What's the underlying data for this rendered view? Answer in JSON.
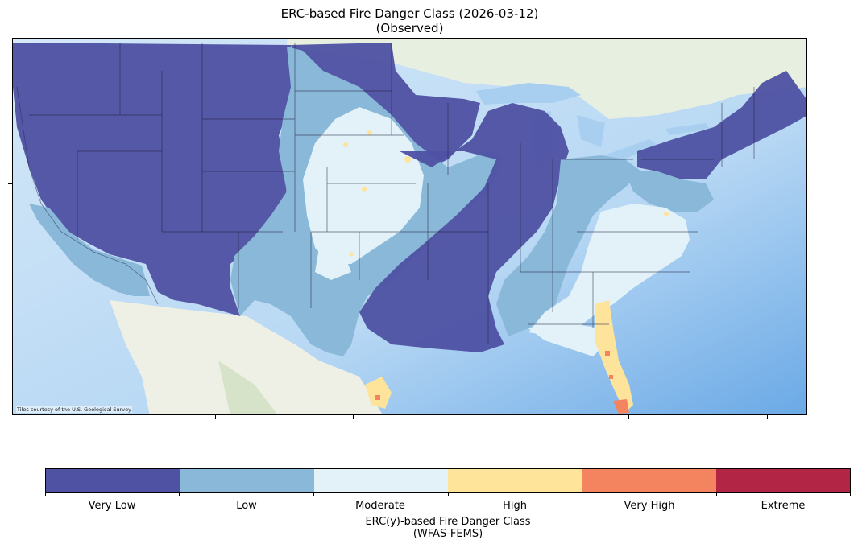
{
  "title": {
    "line1": "ERC-based Fire Danger Class (2026-03-12)",
    "line2": "(Observed)"
  },
  "map": {
    "attribution": "Tiles courtesy of the U.S. Geological Survey",
    "colors": {
      "ocean": "#b9d9f5",
      "land": "#eef0e6"
    }
  },
  "legend": {
    "title_line1": "ERC(y)-based Fire Danger Class",
    "title_line2": "(WFAS-FEMS)",
    "classes": [
      {
        "label": "Very Low",
        "color": "#4f52a3"
      },
      {
        "label": "Low",
        "color": "#8ab8d8"
      },
      {
        "label": "Moderate",
        "color": "#e2f2f8"
      },
      {
        "label": "High",
        "color": "#fee39b"
      },
      {
        "label": "Very High",
        "color": "#f4845f"
      },
      {
        "label": "Extreme",
        "color": "#b22544"
      }
    ]
  }
}
